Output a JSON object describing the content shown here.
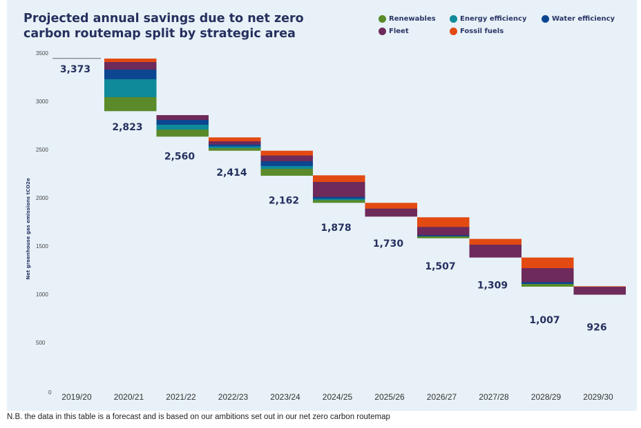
{
  "chart_data": {
    "type": "bar",
    "subtype": "waterfall-stacked",
    "title": "Projected annual savings due to net zero carbon routemap split by strategic area",
    "ylabel": "Net greenhouse gas emissions tCO2e",
    "xlabel": "",
    "ylim": [
      0,
      3500
    ],
    "yticks": [
      0,
      500,
      1000,
      1500,
      2000,
      2500,
      3000,
      3500
    ],
    "grid": false,
    "legend_placement": "top-right",
    "categories": [
      "2019/20",
      "2020/21",
      "2021/22",
      "2022/23",
      "2023/24",
      "2024/25",
      "2025/26",
      "2026/27",
      "2027/28",
      "2028/29",
      "2029/30"
    ],
    "totals": [
      3373,
      2823,
      2560,
      2414,
      2162,
      1878,
      1730,
      1507,
      1309,
      1007,
      926
    ],
    "total_labels": [
      "3,373",
      "2,823",
      "2,560",
      "2,414",
      "2,162",
      "1,878",
      "1,730",
      "1,507",
      "1,309",
      "1,007",
      "926"
    ],
    "series": [
      {
        "name": "Renewables",
        "color": "#5a8a2a"
      },
      {
        "name": "Energy efficiency",
        "color": "#0f8a9a"
      },
      {
        "name": "Water efficiency",
        "color": "#0d4690"
      },
      {
        "name": "Fleet",
        "color": "#6d2a5a"
      },
      {
        "name": "Fossil fuels",
        "color": "#e24a12"
      }
    ],
    "bars": [
      {
        "category": "2020/21",
        "top": 3443,
        "savings": [
          143,
          186,
          100,
          78,
          36
        ]
      },
      {
        "category": "2021/22",
        "top": 2857,
        "savings": [
          71,
          50,
          50,
          50,
          0
        ]
      },
      {
        "category": "2022/23",
        "top": 2626,
        "savings": [
          24,
          19,
          19,
          34,
          40
        ]
      },
      {
        "category": "2023/24",
        "top": 2488,
        "savings": [
          69,
          29,
          50,
          59,
          50
        ]
      },
      {
        "category": "2024/25",
        "top": 2233,
        "savings": [
          26,
          14,
          19,
          155,
          69
        ]
      },
      {
        "category": "2025/26",
        "top": 1948,
        "savings": [
          0,
          0,
          0,
          81,
          60
        ]
      },
      {
        "category": "2026/27",
        "top": 1798,
        "savings": [
          17,
          0,
          12,
          86,
          100
        ]
      },
      {
        "category": "2027/28",
        "top": 1574,
        "savings": [
          0,
          0,
          0,
          131,
          60
        ]
      },
      {
        "category": "2028/29",
        "top": 1381,
        "savings": [
          26,
          0,
          19,
          145,
          110
        ]
      },
      {
        "category": "2029/30",
        "top": 1083,
        "savings": [
          0,
          0,
          0,
          80,
          5
        ]
      }
    ],
    "baseline_value": 3373
  },
  "footer": "N.B. the data in this table is a forecast and is based on our ambitions set out in our net zero carbon routemap"
}
